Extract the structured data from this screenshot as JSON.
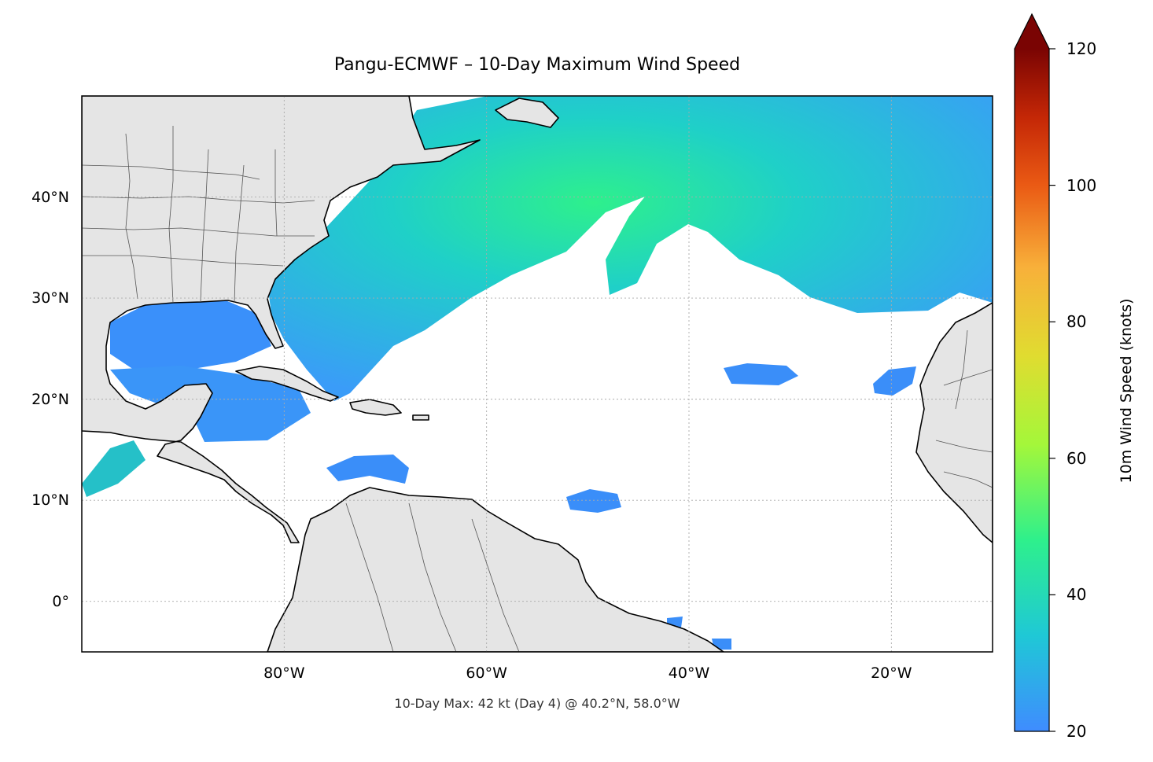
{
  "title": "Pangu-ECMWF – 10-Day Maximum Wind Speed",
  "annotation": "10-Day Max: 42 kt (Day 4) @ 40.2°N, 58.0°W",
  "map": {
    "projection": "PlateCarree",
    "extent_lon": [
      -100,
      -10
    ],
    "extent_lat": [
      -5,
      50
    ],
    "land_color": "#e5e5e5",
    "coastline_color": "#000000",
    "border_color": "#555555",
    "gridlines": true,
    "lon_ticks": [
      {
        "value": -80,
        "label": "80°W"
      },
      {
        "value": -60,
        "label": "60°W"
      },
      {
        "value": -40,
        "label": "40°W"
      },
      {
        "value": -20,
        "label": "20°W"
      }
    ],
    "lat_ticks": [
      {
        "value": 40,
        "label": "40°N"
      },
      {
        "value": 30,
        "label": "30°N"
      },
      {
        "value": 20,
        "label": "20°N"
      },
      {
        "value": 10,
        "label": "10°N"
      },
      {
        "value": 0,
        "label": "0°"
      }
    ]
  },
  "colorbar": {
    "label": "10m Wind Speed (knots)",
    "min": 20,
    "max": 120,
    "extend": "max",
    "ticks": [
      {
        "value": 120,
        "label": "120"
      },
      {
        "value": 100,
        "label": "100"
      },
      {
        "value": 80,
        "label": "80"
      },
      {
        "value": 60,
        "label": "60"
      },
      {
        "value": 40,
        "label": "40"
      },
      {
        "value": 20,
        "label": "20"
      }
    ],
    "colors": [
      "#3f8cff",
      "#1fc8d6",
      "#2ef08c",
      "#a4f73a",
      "#f8c13a",
      "#f2751c",
      "#c42706",
      "#7a0403"
    ]
  },
  "max_point": {
    "value_kt": 42,
    "day": 4,
    "lat": 40.2,
    "lon": -58.0
  }
}
